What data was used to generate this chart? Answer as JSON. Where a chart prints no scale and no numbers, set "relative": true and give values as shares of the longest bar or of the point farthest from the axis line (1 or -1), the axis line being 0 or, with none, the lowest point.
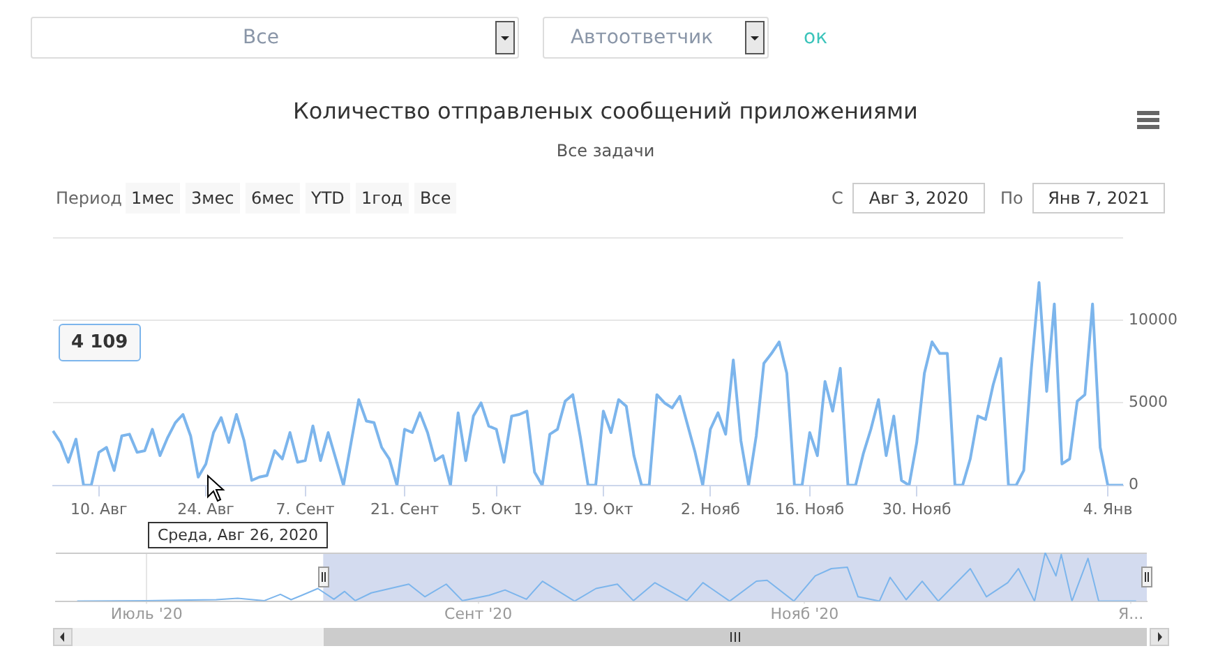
{
  "chart_data": [
    {
      "type": "other",
      "annotations": [
        "Все",
        "Автоответчик",
        "ок"
      ]
    },
    {
      "type": "line",
      "title": "Количество отправленых сообщений приложениями",
      "subtitle": "Все задачи",
      "categories": [
        null,
        null,
        null,
        null,
        null,
        null,
        "10. Авг",
        null,
        null,
        null,
        null,
        null,
        null,
        null,
        null,
        null,
        null,
        null,
        null,
        null,
        "24. Авг",
        null,
        null,
        null,
        null,
        null,
        null,
        null,
        null,
        null,
        null,
        null,
        null,
        "7. Сент",
        null,
        null,
        null,
        null,
        null,
        null,
        null,
        null,
        null,
        null,
        null,
        null,
        "21. Сент",
        null,
        null,
        null,
        null,
        null,
        null,
        null,
        null,
        null,
        null,
        null,
        "5. Окт",
        null,
        null,
        null,
        null,
        null,
        null,
        null,
        null,
        null,
        null,
        null,
        null,
        null,
        "19. Окт",
        null,
        null,
        null,
        null,
        null,
        null,
        null,
        null,
        null,
        null,
        null,
        null,
        null,
        "2. Нояб",
        null,
        null,
        null,
        null,
        null,
        null,
        null,
        null,
        null,
        null,
        null,
        null,
        "16. Нояб",
        null,
        null,
        null,
        null,
        null,
        null,
        null,
        null,
        null,
        null,
        null,
        null,
        null,
        "30. Нояб",
        null,
        null,
        null,
        null,
        null,
        null,
        null,
        null,
        null,
        null,
        null,
        null,
        null,
        null,
        null,
        null,
        null,
        null,
        null,
        null,
        null,
        null,
        null,
        null,
        "4. Янв",
        null,
        null
      ],
      "values": [
        3300,
        2600,
        1400,
        2800,
        0,
        0,
        2000,
        2300,
        900,
        3000,
        3100,
        2000,
        2100,
        3400,
        1800,
        2900,
        3800,
        4300,
        3000,
        500,
        1300,
        3200,
        4109,
        2600,
        4300,
        2700,
        300,
        500,
        600,
        2100,
        1600,
        3200,
        1400,
        1500,
        3600,
        1500,
        3200,
        1600,
        0,
        2600,
        5200,
        3900,
        3800,
        2300,
        1600,
        0,
        3400,
        3200,
        4400,
        3200,
        1500,
        1800,
        0,
        4400,
        1500,
        4200,
        5000,
        3600,
        3400,
        1400,
        4200,
        4300,
        4500,
        800,
        0,
        3100,
        3400,
        5100,
        5500,
        2900,
        0,
        0,
        4500,
        3200,
        5200,
        4800,
        1800,
        0,
        0,
        5500,
        5000,
        4700,
        5400,
        3700,
        2000,
        0,
        3400,
        4400,
        3100,
        7600,
        2700,
        0,
        3000,
        7400,
        8000,
        8700,
        6800,
        0,
        0,
        3200,
        1800,
        6300,
        4500,
        7100,
        0,
        0,
        1900,
        3400,
        5200,
        1800,
        4200,
        300,
        0,
        2600,
        6800,
        8700,
        8000,
        8000,
        0,
        0,
        1600,
        4200,
        4000,
        6100,
        7700,
        0,
        0,
        900,
        7100,
        12300,
        5700,
        11000,
        1300,
        1600,
        5100,
        5500,
        11000,
        2300,
        0,
        0,
        0
      ],
      "color": "#7cb5ec",
      "marker": "none",
      "ylim": [
        0,
        15000
      ],
      "yticks": [
        0,
        5000,
        10000,
        {
          "value": 15000,
          "label": null
        }
      ],
      "grid": "y",
      "annotations": [
        "Период",
        "1мес",
        "3мес",
        "6мес",
        "YTD",
        "1год",
        "Все",
        "С",
        "Авг 3, 2020",
        "По",
        "Янв 7, 2021",
        "4 109",
        "Среда, Авг 26, 2020"
      ]
    },
    {
      "type": "line",
      "relative": true,
      "color": "#7cb5ec",
      "x": [
        "2020-06-18",
        "2020-07-01",
        "2020-07-14",
        "2020-07-18",
        "2020-07-23",
        "2020-07-26",
        "2020-07-28",
        "2020-07-30",
        "2020-08-02",
        "2020-08-05",
        "2020-08-07",
        "2020-08-09",
        "2020-08-12",
        "2020-08-19",
        "2020-08-22",
        "2020-08-26",
        "2020-08-29",
        "2020-09-03",
        "2020-09-06",
        "2020-09-10",
        "2020-09-13",
        "2020-09-19",
        "2020-09-23",
        "2020-09-27",
        "2020-09-30",
        "2020-10-04",
        "2020-10-10",
        "2020-10-13",
        "2020-10-18",
        "2020-10-23",
        "2020-10-25",
        "2020-10-30",
        "2020-11-03",
        "2020-11-06",
        "2020-11-09",
        "2020-11-11",
        "2020-11-15",
        "2020-11-17",
        "2020-11-20",
        "2020-11-23",
        "2020-11-26",
        "2020-12-02",
        "2020-12-05",
        "2020-12-09",
        "2020-12-11",
        "2020-12-14",
        "2020-12-16",
        "2020-12-18",
        "2020-12-19",
        "2020-12-21",
        "2020-12-24",
        "2020-12-26",
        "2021-01-02"
      ],
      "values": [
        0,
        0.01,
        0.03,
        0.06,
        0.01,
        0.14,
        0.03,
        0.12,
        0.26,
        0.04,
        0.2,
        0.01,
        0.17,
        0.35,
        0.09,
        0.35,
        0.01,
        0.12,
        0.23,
        0.04,
        0.41,
        0,
        0.26,
        0.35,
        0.01,
        0.38,
        0.01,
        0.38,
        0,
        0.41,
        0.43,
        0,
        0.52,
        0.67,
        0.7,
        0.09,
        0,
        0.49,
        0.03,
        0.41,
        0,
        0.67,
        0.09,
        0.38,
        0.67,
        0,
        1,
        0.52,
        0.96,
        0,
        0.88,
        0,
        0
      ],
      "xlim": [
        "2020-06-14",
        "2021-01-04"
      ],
      "xticks": [
        {
          "value": "2020-07-01",
          "label": "Июль '20"
        },
        {
          "value": "2020-09-01",
          "label": "Сент '20"
        },
        {
          "value": "2020-11-01",
          "label": "Нояб '20"
        },
        {
          "value": "2021-01-01",
          "label": "Я..."
        }
      ],
      "grid": "x",
      "bands": [
        {
          "axis": "x",
          "from": "2020-08-03",
          "to": "2021-01-04",
          "color": "#d3dbef"
        }
      ]
    }
  ]
}
